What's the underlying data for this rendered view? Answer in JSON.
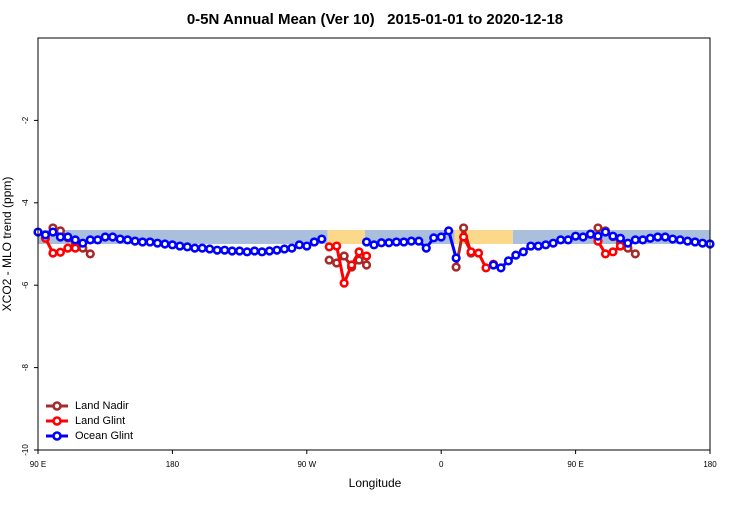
{
  "chart_data": {
    "type": "line",
    "title": "0-5N Annual Mean (Ver 10)   2015-01-01 to 2020-12-18",
    "xlabel": "Longitude",
    "ylabel": "XCO2 - MLO trend (ppm)",
    "xlim": [
      90,
      540
    ],
    "ylim": [
      -10,
      0
    ],
    "xticks": [
      {
        "value": 90,
        "label": "90 E"
      },
      {
        "value": 180,
        "label": "180"
      },
      {
        "value": 270,
        "label": "90 W"
      },
      {
        "value": 360,
        "label": "0"
      },
      {
        "value": 450,
        "label": "90 E"
      },
      {
        "value": 540,
        "label": "180"
      }
    ],
    "yticks": [
      -10,
      -8,
      -6,
      -4,
      -2
    ],
    "legend": "bottom-left",
    "x": [
      90,
      95,
      100,
      105,
      110,
      115,
      120,
      125,
      130,
      135,
      140,
      145,
      150,
      155,
      160,
      165,
      170,
      175,
      180,
      185,
      190,
      195,
      200,
      205,
      210,
      215,
      220,
      225,
      230,
      235,
      240,
      245,
      250,
      255,
      260,
      265,
      270,
      275,
      280,
      285,
      290,
      295,
      300,
      305,
      310,
      315,
      320,
      325,
      330,
      335,
      340,
      345,
      350,
      355,
      360,
      365,
      370,
      375,
      380,
      385,
      390,
      395,
      400,
      405,
      410,
      415,
      420,
      425,
      430,
      435,
      440,
      445,
      450,
      455,
      460,
      465,
      470,
      475,
      480,
      485,
      490,
      495,
      500,
      505,
      510,
      515,
      520,
      525,
      530,
      535,
      540
    ],
    "bands": [
      {
        "from": 90,
        "to": 284,
        "low": -5.0,
        "high": -4.66,
        "color": "#a9bfdc"
      },
      {
        "from": 284,
        "to": 309,
        "low": -5.0,
        "high": -4.66,
        "color": "#fcd98a"
      },
      {
        "from": 309,
        "to": 369,
        "low": -5.0,
        "high": -4.66,
        "color": "#a9bfdc"
      },
      {
        "from": 369,
        "to": 408,
        "low": -5.0,
        "high": -4.66,
        "color": "#fcd98a"
      },
      {
        "from": 408,
        "to": 540,
        "low": -5.0,
        "high": -4.66,
        "color": "#a9bfdc"
      }
    ],
    "series": [
      {
        "name": "Land Nadir",
        "color": "#a52a2a",
        "values": [
          null,
          null,
          -4.61,
          -4.68,
          -4.85,
          -5.02,
          -5.1,
          -5.24,
          null,
          null,
          null,
          null,
          null,
          null,
          null,
          null,
          null,
          null,
          null,
          null,
          null,
          null,
          null,
          null,
          null,
          null,
          null,
          null,
          null,
          null,
          null,
          null,
          null,
          null,
          null,
          null,
          null,
          null,
          null,
          -5.39,
          -5.46,
          -5.29,
          -5.56,
          -5.39,
          -5.51,
          null,
          null,
          null,
          null,
          null,
          null,
          null,
          null,
          null,
          null,
          null,
          -5.56,
          -4.61,
          -5.22,
          null,
          null,
          null,
          null,
          null,
          null,
          null,
          null,
          null,
          null,
          null,
          null,
          null,
          null,
          null,
          null,
          -4.61,
          -4.68,
          -4.82,
          -4.97,
          -5.1,
          -5.24,
          null,
          null,
          null,
          null,
          null,
          null,
          null,
          null,
          null,
          null
        ]
      },
      {
        "name": "Land Glint",
        "color": "#ff0000",
        "values": [
          null,
          -4.86,
          -5.22,
          -5.2,
          -5.1,
          -5.1,
          null,
          null,
          null,
          null,
          null,
          null,
          null,
          null,
          null,
          null,
          null,
          null,
          null,
          null,
          null,
          null,
          null,
          null,
          null,
          null,
          null,
          null,
          null,
          null,
          null,
          null,
          null,
          null,
          null,
          null,
          null,
          null,
          null,
          -5.07,
          -5.05,
          -5.95,
          -5.51,
          -5.19,
          -5.29,
          null,
          null,
          null,
          null,
          null,
          null,
          null,
          null,
          null,
          null,
          null,
          null,
          -4.83,
          -5.19,
          -5.22,
          -5.58,
          -5.49,
          null,
          null,
          null,
          null,
          null,
          null,
          null,
          null,
          null,
          null,
          null,
          null,
          -4.76,
          -4.93,
          -5.24,
          -5.19,
          -5.05,
          null,
          null,
          null,
          null,
          null,
          null,
          null,
          null,
          null,
          null,
          null,
          null
        ]
      },
      {
        "name": "Ocean Glint",
        "color": "#0000ff",
        "values": [
          -4.71,
          -4.78,
          -4.71,
          -4.83,
          -4.83,
          -4.9,
          -4.98,
          -4.9,
          -4.9,
          -4.83,
          -4.83,
          -4.88,
          -4.9,
          -4.93,
          -4.95,
          -4.95,
          -4.98,
          -5.0,
          -5.02,
          -5.05,
          -5.07,
          -5.1,
          -5.1,
          -5.12,
          -5.15,
          -5.15,
          -5.17,
          -5.17,
          -5.19,
          -5.17,
          -5.19,
          -5.17,
          -5.15,
          -5.12,
          -5.1,
          -5.02,
          -5.05,
          -4.95,
          -4.88,
          null,
          null,
          null,
          null,
          null,
          -4.95,
          -5.02,
          -4.97,
          -4.97,
          -4.95,
          -4.95,
          -4.93,
          -4.93,
          -5.1,
          -4.85,
          -4.83,
          -4.68,
          -5.34,
          null,
          null,
          null,
          null,
          -5.51,
          -5.58,
          -5.41,
          -5.27,
          -5.19,
          -5.05,
          -5.05,
          -5.02,
          -4.98,
          -4.9,
          -4.9,
          -4.81,
          -4.83,
          -4.76,
          -4.81,
          -4.71,
          -4.81,
          -4.86,
          -4.98,
          -4.9,
          -4.9,
          -4.86,
          -4.83,
          -4.83,
          -4.88,
          -4.9,
          -4.93,
          -4.95,
          -4.98,
          -5.0
        ]
      }
    ]
  }
}
